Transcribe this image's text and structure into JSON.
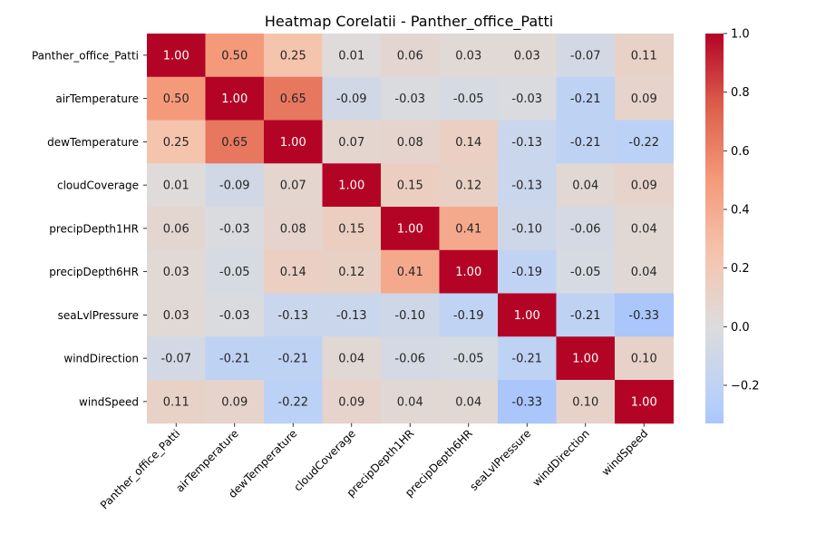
{
  "chart_data": {
    "type": "heatmap",
    "title": "Heatmap Corelatii - Panther_office_Patti",
    "row_labels": [
      "Panther_office_Patti",
      "airTemperature",
      "dewTemperature",
      "cloudCoverage",
      "precipDepth1HR",
      "precipDepth6HR",
      "seaLvlPressure",
      "windDirection",
      "windSpeed"
    ],
    "col_labels": [
      "Panther_office_Patti",
      "airTemperature",
      "dewTemperature",
      "cloudCoverage",
      "precipDepth1HR",
      "precipDepth6HR",
      "seaLvlPressure",
      "windDirection",
      "windSpeed"
    ],
    "values": [
      [
        1.0,
        0.5,
        0.25,
        0.01,
        0.06,
        0.03,
        0.03,
        -0.07,
        0.11
      ],
      [
        0.5,
        1.0,
        0.65,
        -0.09,
        -0.03,
        -0.05,
        -0.03,
        -0.21,
        0.09
      ],
      [
        0.25,
        0.65,
        1.0,
        0.07,
        0.08,
        0.14,
        -0.13,
        -0.21,
        -0.22
      ],
      [
        0.01,
        -0.09,
        0.07,
        1.0,
        0.15,
        0.12,
        -0.13,
        0.04,
        0.09
      ],
      [
        0.06,
        -0.03,
        0.08,
        0.15,
        1.0,
        0.41,
        -0.1,
        -0.06,
        0.04
      ],
      [
        0.03,
        -0.05,
        0.14,
        0.12,
        0.41,
        1.0,
        -0.19,
        -0.05,
        0.04
      ],
      [
        0.03,
        -0.03,
        -0.13,
        -0.13,
        -0.1,
        -0.19,
        1.0,
        -0.21,
        -0.33
      ],
      [
        -0.07,
        -0.21,
        -0.21,
        0.04,
        -0.06,
        -0.05,
        -0.21,
        1.0,
        0.1
      ],
      [
        0.11,
        0.09,
        -0.22,
        0.09,
        0.04,
        0.04,
        -0.33,
        0.1,
        1.0
      ]
    ],
    "value_format": "0.00",
    "colormap": "coolwarm",
    "color_range": [
      -0.33,
      1.0
    ],
    "colorbar_ticks": [
      1.0,
      0.8,
      0.6,
      0.4,
      0.2,
      0.0,
      -0.2
    ],
    "colorbar_tick_labels": [
      "1.0",
      "0.8",
      "0.6",
      "0.4",
      "0.2",
      "0.0",
      "−0.2"
    ]
  }
}
